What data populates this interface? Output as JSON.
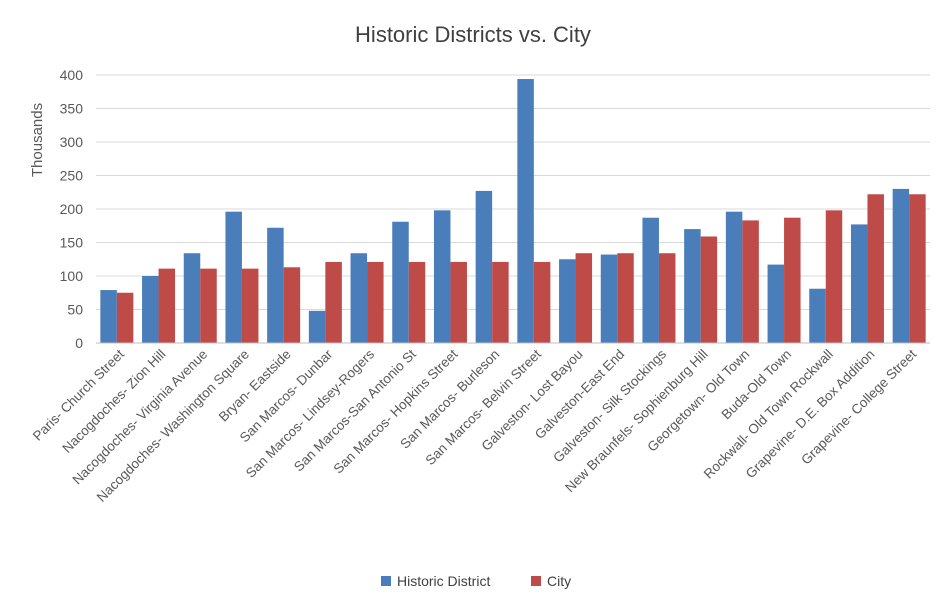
{
  "chart_data": {
    "type": "bar",
    "title": "Historic Districts vs. City",
    "xlabel": "",
    "ylabel": "Thousands",
    "ylim": [
      0,
      400
    ],
    "yticks": [
      0,
      50,
      100,
      150,
      200,
      250,
      300,
      350,
      400
    ],
    "grid": true,
    "legend_position": "bottom",
    "categories": [
      "Paris- Church Street",
      "Nacogdoches- Zion Hill",
      "Nacogdoches- Virginia Avenue",
      "Nacogdoches- Washington Square",
      "Bryan- Eastside",
      "San Marcos- Dunbar",
      "San Marcos- Lindsey-Rogers",
      "San Marcos-San Antonio St",
      "San Marcos- Hopkins Street",
      "San Marcos- Burleson",
      "San Marcos- Belvin Street",
      "Galveston- Lost Bayou",
      "Galveston-East End",
      "Galveston- Silk Stockings",
      "New Braunfels- Sophienburg Hill",
      "Georgetown- Old Town",
      "Buda-Old Town",
      "Rockwall- Old Town Rockwall",
      "Grapevine- D.E. Box Addition",
      "Grapevine- College Street"
    ],
    "series": [
      {
        "name": "Historic District",
        "color": "#4a7ebb",
        "values": [
          79,
          100,
          134,
          196,
          172,
          48,
          134,
          181,
          198,
          227,
          394,
          125,
          132,
          187,
          170,
          196,
          117,
          81,
          177,
          230
        ]
      },
      {
        "name": "City",
        "color": "#be4b48",
        "values": [
          75,
          111,
          111,
          111,
          113,
          121,
          121,
          121,
          121,
          121,
          121,
          134,
          134,
          134,
          159,
          183,
          187,
          198,
          222,
          222
        ]
      }
    ]
  }
}
